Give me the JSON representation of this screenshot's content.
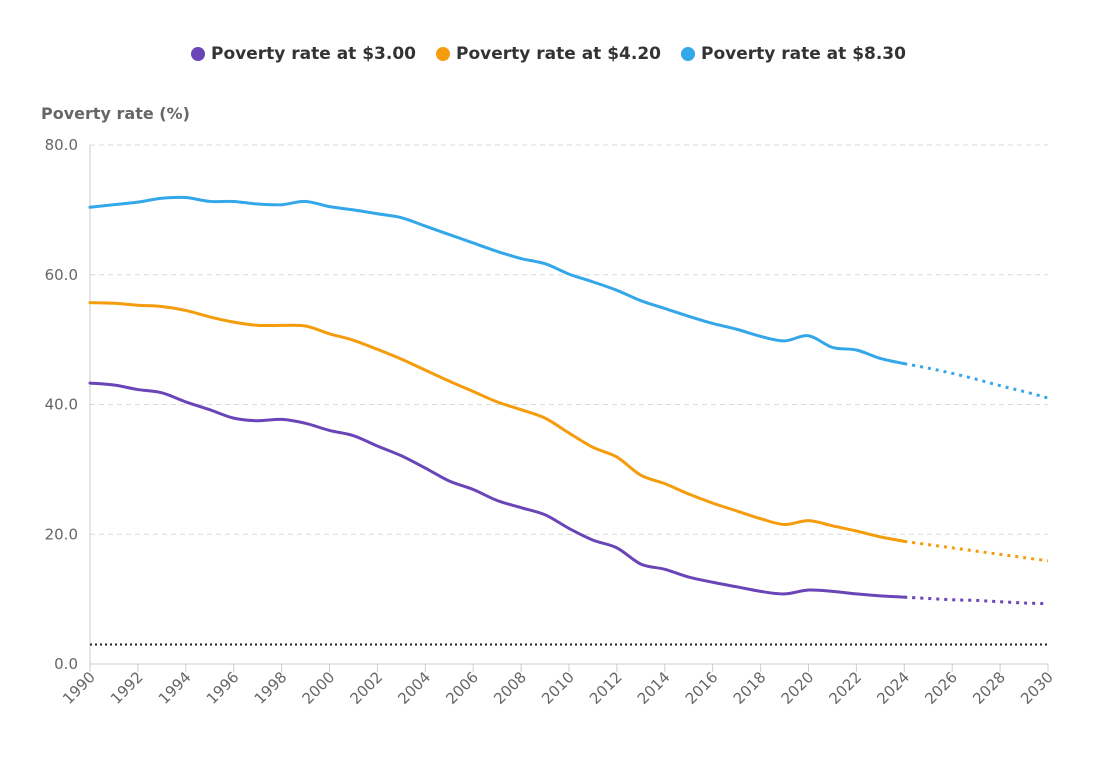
{
  "chart_data": {
    "type": "line",
    "title": "",
    "xlabel": "",
    "ylabel": "Poverty rate (%)",
    "xlim": [
      1990,
      2030
    ],
    "ylim": [
      0,
      80
    ],
    "x_ticks": [
      "1990",
      "1992",
      "1994",
      "1996",
      "1998",
      "2000",
      "2002",
      "2004",
      "2006",
      "2008",
      "2010",
      "2012",
      "2014",
      "2016",
      "2018",
      "2020",
      "2022",
      "2024",
      "2026",
      "2028",
      "2030"
    ],
    "y_ticks": [
      "0.0",
      "20.0",
      "40.0",
      "60.0",
      "80.0"
    ],
    "grid": true,
    "legend_position": "top-center",
    "reference_line": {
      "y": 3.0,
      "style": "dotted",
      "color": "#222222"
    },
    "series": [
      {
        "name": "Poverty rate at $3.00",
        "color": "#6a45b8",
        "actual": {
          "x": [
            1990,
            1991,
            1992,
            1993,
            1994,
            1995,
            1996,
            1997,
            1998,
            1999,
            2000,
            2001,
            2002,
            2003,
            2004,
            2005,
            2006,
            2007,
            2008,
            2009,
            2010,
            2011,
            2012,
            2013,
            2014,
            2015,
            2016,
            2017,
            2018,
            2019,
            2020,
            2021,
            2022,
            2023,
            2024
          ],
          "y": [
            43.3,
            43.0,
            42.3,
            41.8,
            40.4,
            39.2,
            37.9,
            37.5,
            37.7,
            37.1,
            36.0,
            35.2,
            33.6,
            32.1,
            30.2,
            28.2,
            26.9,
            25.2,
            24.1,
            23.0,
            20.9,
            19.1,
            17.9,
            15.4,
            14.6,
            13.4,
            12.6,
            11.9,
            11.2,
            10.8,
            11.4,
            11.2,
            10.8,
            10.5,
            10.3
          ]
        },
        "projection": {
          "x": [
            2024,
            2025,
            2026,
            2027,
            2028,
            2029,
            2030
          ],
          "y": [
            10.3,
            10.1,
            9.9,
            9.8,
            9.6,
            9.4,
            9.3
          ]
        }
      },
      {
        "name": "Poverty rate at $4.20",
        "color": "#f59c0c",
        "actual": {
          "x": [
            1990,
            1991,
            1992,
            1993,
            1994,
            1995,
            1996,
            1997,
            1998,
            1999,
            2000,
            2001,
            2002,
            2003,
            2004,
            2005,
            2006,
            2007,
            2008,
            2009,
            2010,
            2011,
            2012,
            2013,
            2014,
            2015,
            2016,
            2017,
            2018,
            2019,
            2020,
            2021,
            2022,
            2023,
            2024
          ],
          "y": [
            55.7,
            55.6,
            55.3,
            55.1,
            54.5,
            53.5,
            52.7,
            52.2,
            52.2,
            52.1,
            50.9,
            49.9,
            48.5,
            47.0,
            45.3,
            43.6,
            42.0,
            40.4,
            39.2,
            37.9,
            35.6,
            33.4,
            31.9,
            29.1,
            27.8,
            26.2,
            24.8,
            23.6,
            22.4,
            21.5,
            22.1,
            21.3,
            20.5,
            19.6,
            18.9
          ]
        },
        "projection": {
          "x": [
            2024,
            2025,
            2026,
            2027,
            2028,
            2029,
            2030
          ],
          "y": [
            18.9,
            18.4,
            17.9,
            17.4,
            16.9,
            16.4,
            15.9
          ]
        }
      },
      {
        "name": "Poverty rate at $8.30",
        "color": "#34a6ea",
        "actual": {
          "x": [
            1990,
            1991,
            1992,
            1993,
            1994,
            1995,
            1996,
            1997,
            1998,
            1999,
            2000,
            2001,
            2002,
            2003,
            2004,
            2005,
            2006,
            2007,
            2008,
            2009,
            2010,
            2011,
            2012,
            2013,
            2014,
            2015,
            2016,
            2017,
            2018,
            2019,
            2020,
            2021,
            2022,
            2023,
            2024
          ],
          "y": [
            70.4,
            70.8,
            71.2,
            71.8,
            71.9,
            71.3,
            71.3,
            70.9,
            70.8,
            71.3,
            70.5,
            70.0,
            69.4,
            68.8,
            67.5,
            66.2,
            64.9,
            63.6,
            62.5,
            61.7,
            60.1,
            58.9,
            57.6,
            56.0,
            54.8,
            53.6,
            52.5,
            51.6,
            50.5,
            49.8,
            50.6,
            48.8,
            48.4,
            47.1,
            46.3
          ]
        },
        "projection": {
          "x": [
            2024,
            2025,
            2026,
            2027,
            2028,
            2029,
            2030
          ],
          "y": [
            46.3,
            45.6,
            44.8,
            43.9,
            42.9,
            42.0,
            41.0
          ]
        }
      }
    ]
  }
}
